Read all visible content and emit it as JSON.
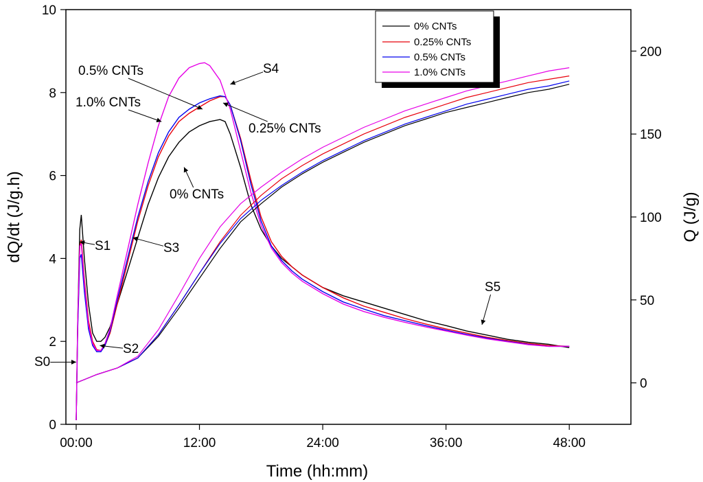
{
  "chart_data": {
    "type": "line",
    "xlabel": "Time (hh:mm)",
    "ylabel_left": "dQ/dt (J/g.h)",
    "ylabel_right": "Q (J/g)",
    "x_unit": "hours",
    "xlim": [
      -1,
      54
    ],
    "ylim_left": [
      0,
      10
    ],
    "ylim_right": [
      -25,
      225
    ],
    "x_ticks": [
      {
        "value": 0,
        "label": "00:00"
      },
      {
        "value": 12,
        "label": "12:00"
      },
      {
        "value": 24,
        "label": "24:00"
      },
      {
        "value": 36,
        "label": "36:00"
      },
      {
        "value": 48,
        "label": "48:00"
      }
    ],
    "y_ticks_left": [
      {
        "value": 0,
        "label": "0"
      },
      {
        "value": 2,
        "label": "2"
      },
      {
        "value": 4,
        "label": "4"
      },
      {
        "value": 6,
        "label": "6"
      },
      {
        "value": 8,
        "label": "8"
      },
      {
        "value": 10,
        "label": "10"
      }
    ],
    "y_ticks_right": [
      {
        "value": 0,
        "label": "0"
      },
      {
        "value": 50,
        "label": "50"
      },
      {
        "value": 100,
        "label": "100"
      },
      {
        "value": 150,
        "label": "150"
      },
      {
        "value": 200,
        "label": "200"
      }
    ],
    "legend": {
      "position": "top-right",
      "entries": [
        {
          "label": "0% CNTs",
          "color": "#000000"
        },
        {
          "label": "0.25% CNTs",
          "color": "#e8000b"
        },
        {
          "label": "0.5% CNTs",
          "color": "#0000ee"
        },
        {
          "label": "1.0% CNTs",
          "color": "#e600e6"
        }
      ]
    },
    "series_rate": [
      {
        "name": "0% CNTs",
        "color": "#000000",
        "axis": "left",
        "x": [
          0,
          0.15,
          0.35,
          0.5,
          0.8,
          1.2,
          1.6,
          2.0,
          2.4,
          2.8,
          3.3,
          4,
          5,
          6,
          7,
          8,
          9,
          10,
          11,
          12,
          13,
          14,
          14.5,
          15,
          16,
          17,
          18,
          19,
          20,
          21,
          22,
          24,
          26,
          28,
          30,
          32,
          34,
          36,
          38,
          40,
          42,
          44,
          46,
          48
        ],
        "y": [
          0.1,
          2.5,
          4.7,
          5.05,
          4.0,
          2.9,
          2.2,
          2.0,
          2.0,
          2.1,
          2.35,
          2.9,
          3.7,
          4.5,
          5.3,
          5.95,
          6.45,
          6.8,
          7.05,
          7.2,
          7.3,
          7.35,
          7.3,
          7.0,
          6.2,
          5.3,
          4.7,
          4.3,
          4.0,
          3.8,
          3.6,
          3.3,
          3.1,
          2.95,
          2.8,
          2.65,
          2.5,
          2.38,
          2.25,
          2.15,
          2.05,
          1.98,
          1.93,
          1.85
        ]
      },
      {
        "name": "0.25% CNTs",
        "color": "#e8000b",
        "axis": "left",
        "x": [
          0,
          0.15,
          0.35,
          0.5,
          0.8,
          1.2,
          1.6,
          2.0,
          2.4,
          2.8,
          3.3,
          4,
          5,
          6,
          7,
          8,
          9,
          10,
          11,
          12,
          13,
          14,
          14.5,
          15,
          16,
          17,
          18,
          19,
          20,
          21,
          22,
          24,
          26,
          28,
          30,
          32,
          34,
          36,
          38,
          40,
          42,
          44,
          46,
          48
        ],
        "y": [
          0.1,
          2.4,
          4.3,
          4.45,
          3.5,
          2.5,
          2.0,
          1.8,
          1.78,
          1.9,
          2.2,
          2.9,
          3.9,
          4.9,
          5.75,
          6.45,
          6.95,
          7.3,
          7.5,
          7.65,
          7.8,
          7.9,
          7.9,
          7.7,
          6.9,
          5.9,
          5.0,
          4.4,
          4.05,
          3.8,
          3.6,
          3.3,
          3.05,
          2.85,
          2.7,
          2.55,
          2.42,
          2.3,
          2.2,
          2.1,
          2.02,
          1.95,
          1.9,
          1.88
        ]
      },
      {
        "name": "0.5% CNTs",
        "color": "#0000ee",
        "axis": "left",
        "x": [
          0,
          0.15,
          0.35,
          0.5,
          0.8,
          1.2,
          1.6,
          2.0,
          2.4,
          2.8,
          3.3,
          4,
          5,
          6,
          7,
          8,
          9,
          10,
          11,
          12,
          13,
          14,
          14.5,
          15,
          16,
          17,
          18,
          19,
          20,
          21,
          22,
          24,
          26,
          28,
          30,
          32,
          34,
          36,
          38,
          40,
          42,
          44,
          46,
          48
        ],
        "y": [
          0.1,
          2.3,
          4.0,
          4.1,
          3.2,
          2.3,
          1.9,
          1.75,
          1.75,
          1.9,
          2.25,
          3.0,
          4.0,
          5.0,
          5.85,
          6.55,
          7.05,
          7.4,
          7.6,
          7.75,
          7.85,
          7.92,
          7.9,
          7.7,
          6.85,
          5.8,
          4.9,
          4.3,
          3.95,
          3.7,
          3.5,
          3.2,
          2.95,
          2.78,
          2.62,
          2.5,
          2.38,
          2.27,
          2.17,
          2.08,
          2.0,
          1.93,
          1.88,
          1.88
        ]
      },
      {
        "name": "1.0% CNTs",
        "color": "#e600e6",
        "axis": "left",
        "x": [
          0,
          0.15,
          0.35,
          0.5,
          0.8,
          1.2,
          1.6,
          2.0,
          2.4,
          2.8,
          3.3,
          4,
          5,
          6,
          7,
          8,
          9,
          10,
          11,
          12,
          12.5,
          13,
          14,
          15,
          16,
          17,
          18,
          19,
          20,
          21,
          22,
          24,
          26,
          28,
          30,
          32,
          34,
          36,
          38,
          40,
          42,
          44,
          46,
          48
        ],
        "y": [
          0.1,
          2.5,
          4.3,
          4.35,
          3.4,
          2.4,
          1.95,
          1.78,
          1.78,
          1.95,
          2.3,
          3.1,
          4.2,
          5.3,
          6.3,
          7.2,
          7.9,
          8.35,
          8.6,
          8.7,
          8.72,
          8.65,
          8.3,
          7.6,
          6.6,
          5.6,
          4.8,
          4.25,
          3.9,
          3.65,
          3.45,
          3.15,
          2.9,
          2.72,
          2.58,
          2.46,
          2.35,
          2.25,
          2.15,
          2.06,
          1.99,
          1.92,
          1.88,
          1.88
        ]
      }
    ],
    "series_cumulative": [
      {
        "name": "0% CNTs",
        "color": "#000000",
        "axis": "right",
        "x": [
          0,
          2,
          4,
          6,
          8,
          10,
          12,
          14,
          16,
          18,
          20,
          22,
          24,
          26,
          28,
          30,
          32,
          34,
          36,
          38,
          40,
          42,
          44,
          46,
          48
        ],
        "y": [
          0,
          5,
          9,
          15,
          28,
          45,
          63,
          81,
          97,
          108,
          118,
          126,
          133,
          139,
          145,
          150,
          155,
          159,
          163,
          166,
          169,
          172,
          175,
          177,
          180
        ]
      },
      {
        "name": "0.25% CNTs",
        "color": "#e8000b",
        "axis": "right",
        "x": [
          0,
          2,
          4,
          6,
          8,
          10,
          12,
          14,
          16,
          18,
          20,
          22,
          24,
          26,
          28,
          30,
          32,
          34,
          36,
          38,
          40,
          42,
          44,
          46,
          48
        ],
        "y": [
          0,
          5,
          9,
          15,
          29,
          47,
          66,
          85,
          101,
          113,
          123,
          131,
          138,
          144,
          150,
          155,
          160,
          164,
          168,
          172,
          175,
          178,
          181,
          183,
          185
        ]
      },
      {
        "name": "0.5% CNTs",
        "color": "#0000ee",
        "axis": "right",
        "x": [
          0,
          2,
          4,
          6,
          8,
          10,
          12,
          14,
          16,
          18,
          20,
          22,
          24,
          26,
          28,
          30,
          32,
          34,
          36,
          38,
          40,
          42,
          44,
          46,
          48
        ],
        "y": [
          0,
          5,
          9,
          15,
          29,
          47,
          66,
          84,
          99,
          110,
          119,
          127,
          134,
          140,
          146,
          151,
          156,
          160,
          164,
          168,
          171,
          174,
          177,
          179,
          182
        ]
      },
      {
        "name": "1.0% CNTs",
        "color": "#e600e6",
        "axis": "right",
        "x": [
          0,
          2,
          4,
          6,
          8,
          10,
          12,
          14,
          16,
          18,
          20,
          22,
          24,
          26,
          28,
          30,
          32,
          34,
          36,
          38,
          40,
          42,
          44,
          46,
          48
        ],
        "y": [
          0,
          5,
          9,
          16,
          32,
          53,
          75,
          94,
          108,
          118,
          127,
          135,
          142,
          148,
          154,
          159,
          164,
          168,
          172,
          176,
          179,
          182,
          185,
          188,
          190
        ]
      }
    ],
    "annotations": [
      {
        "text": "S0",
        "x": 0,
        "y": 1.5
      },
      {
        "text": "S1",
        "x": 0.35,
        "y": 4.4
      },
      {
        "text": "S2",
        "x": 2.3,
        "y": 1.9
      },
      {
        "text": "S3",
        "x": 5.5,
        "y": 4.5
      },
      {
        "text": "S4",
        "x": 15,
        "y": 8.2
      },
      {
        "text": "S5",
        "x": 39.5,
        "y": 2.4
      },
      {
        "text": "0.5% CNTs",
        "x": 12.3,
        "y": 7.6
      },
      {
        "text": "1.0% CNTs",
        "x": 8.3,
        "y": 7.3
      },
      {
        "text": "0.25% CNTs",
        "x": 14.3,
        "y": 7.75
      },
      {
        "text": "0% CNTs",
        "x": 10.5,
        "y": 6.2
      }
    ]
  }
}
